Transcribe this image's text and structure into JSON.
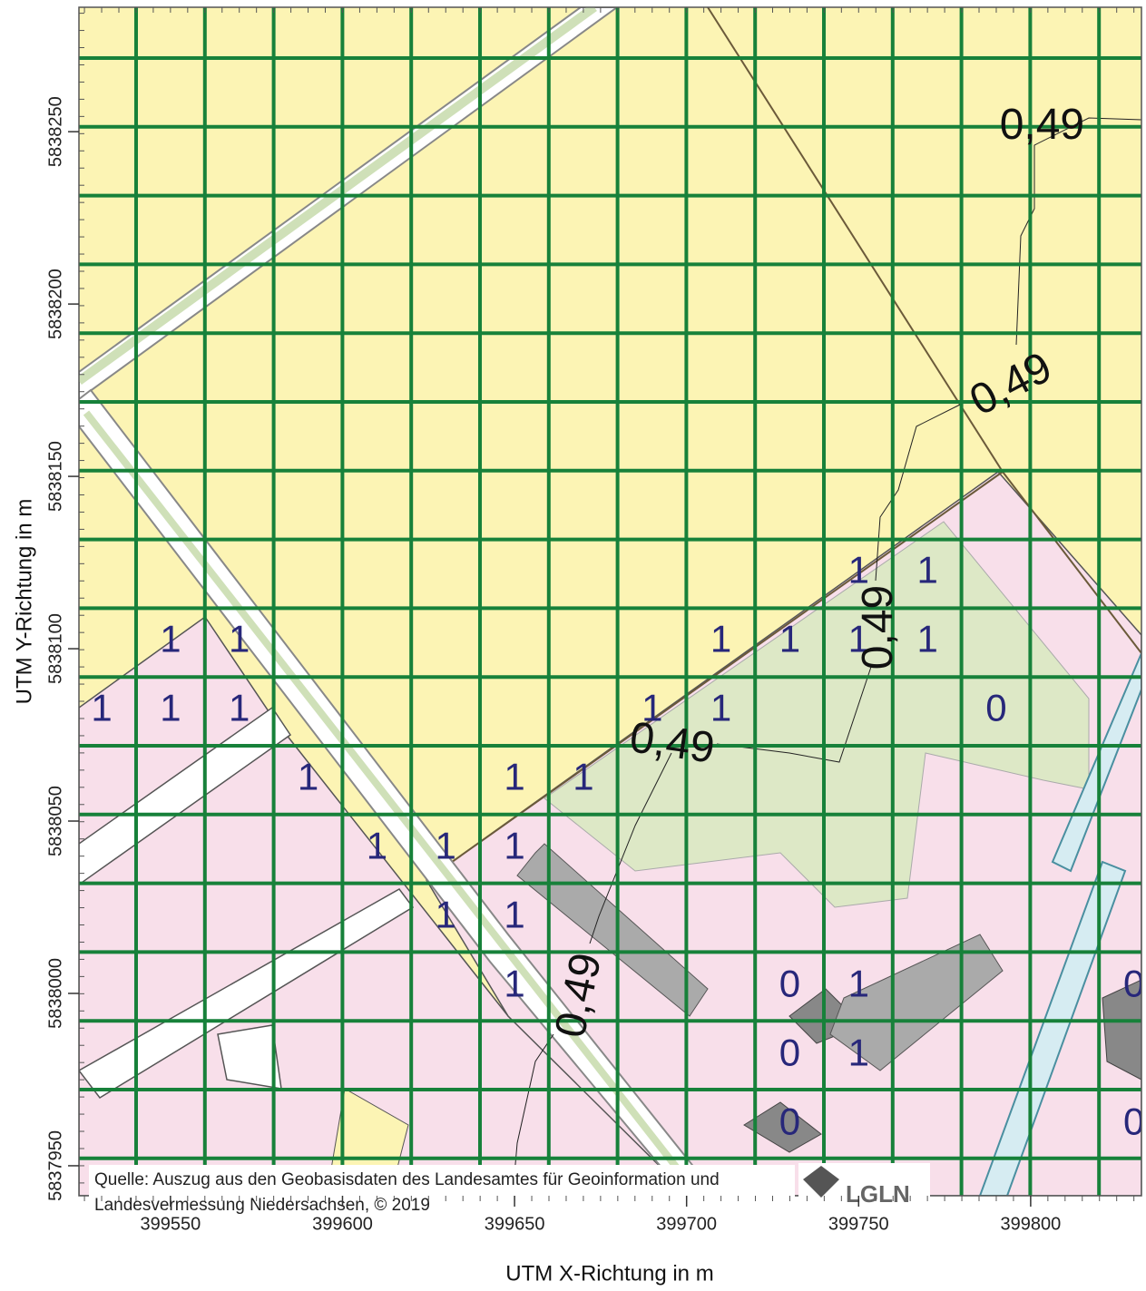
{
  "axes": {
    "x_label": "UTM X-Richtung in m",
    "y_label": "UTM Y-Richtung in m",
    "xlim": [
      399523.4,
      399832.2
    ],
    "ylim": [
      5837941.3,
      5838286.1
    ],
    "xticks": [
      399550,
      399600,
      399650,
      399700,
      399750,
      399800
    ],
    "yticks": [
      5837950,
      5838000,
      5838050,
      5838100,
      5838150,
      5838200,
      5838250
    ]
  },
  "cell_values": [
    {
      "x": 399750,
      "y": 5838122,
      "value": 1
    },
    {
      "x": 399770,
      "y": 5838122,
      "value": 1
    },
    {
      "x": 399550,
      "y": 5838102,
      "value": 1
    },
    {
      "x": 399570,
      "y": 5838102,
      "value": 1
    },
    {
      "x": 399710,
      "y": 5838102,
      "value": 1
    },
    {
      "x": 399730,
      "y": 5838102,
      "value": 1
    },
    {
      "x": 399750,
      "y": 5838102,
      "value": 1
    },
    {
      "x": 399770,
      "y": 5838102,
      "value": 1
    },
    {
      "x": 399530,
      "y": 5838082,
      "value": 1
    },
    {
      "x": 399550,
      "y": 5838082,
      "value": 1
    },
    {
      "x": 399570,
      "y": 5838082,
      "value": 1
    },
    {
      "x": 399690,
      "y": 5838082,
      "value": 1
    },
    {
      "x": 399710,
      "y": 5838082,
      "value": 1
    },
    {
      "x": 399790,
      "y": 5838082,
      "value": 0
    },
    {
      "x": 399590,
      "y": 5838062,
      "value": 1
    },
    {
      "x": 399650,
      "y": 5838062,
      "value": 1
    },
    {
      "x": 399670,
      "y": 5838062,
      "value": 1
    },
    {
      "x": 399610,
      "y": 5838042,
      "value": 1
    },
    {
      "x": 399630,
      "y": 5838042,
      "value": 1
    },
    {
      "x": 399650,
      "y": 5838042,
      "value": 1
    },
    {
      "x": 399630,
      "y": 5838022,
      "value": 1
    },
    {
      "x": 399650,
      "y": 5838022,
      "value": 1
    },
    {
      "x": 399650,
      "y": 5838002,
      "value": 1
    },
    {
      "x": 399730,
      "y": 5838002,
      "value": 0
    },
    {
      "x": 399750,
      "y": 5838002,
      "value": 1
    },
    {
      "x": 399830,
      "y": 5838002,
      "value": 0
    },
    {
      "x": 399730,
      "y": 5837982,
      "value": 0
    },
    {
      "x": 399750,
      "y": 5837982,
      "value": 1
    },
    {
      "x": 399730,
      "y": 5837962,
      "value": 0
    },
    {
      "x": 399830,
      "y": 5837962,
      "value": 0
    }
  ],
  "contour_labels": [
    {
      "x": 399803.3,
      "y": 5838251.3,
      "value": 0.49,
      "label": "0,49"
    },
    {
      "x": 399794.6,
      "y": 5838176.1,
      "value": 0.49,
      "label": "0,49"
    },
    {
      "x": 399695.7,
      "y": 5838071.9,
      "value": 0.49,
      "label": "0,49"
    },
    {
      "x": 399756.4,
      "y": 5838106.2,
      "value": 0.49,
      "label": "0,49"
    },
    {
      "x": 399669.3,
      "y": 5837999.3,
      "value": 0.49,
      "label": "0,49"
    }
  ],
  "source": {
    "line1": "Quelle: Auszug aus den Geobasisdaten des Landesamtes für Geoinformation und",
    "line2": "Landesvermessung Niedersachsen, © 2019"
  },
  "logo": "LGLN"
}
